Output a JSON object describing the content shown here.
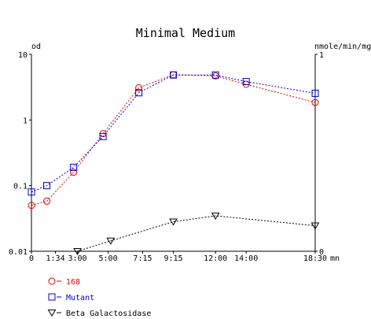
{
  "chart_data": {
    "type": "line",
    "title": "Minimal Medium",
    "y_left": {
      "label": "od",
      "scale": "log",
      "ylim": [
        0.01,
        10
      ],
      "ticks": [
        "10",
        "1",
        "0.1",
        "0.01"
      ]
    },
    "y_right": {
      "label": "nmole/min/mg",
      "ylim": [
        0,
        1
      ],
      "ticks": [
        "1",
        "0"
      ]
    },
    "x": {
      "unit": "mn",
      "tick_labels": [
        "0",
        "1:34",
        "3:00",
        "5:00",
        "7:15",
        "9:15",
        "12:00",
        "14:00",
        "18:30"
      ],
      "tick_minutes": [
        0,
        94,
        180,
        300,
        435,
        555,
        720,
        840,
        1110
      ]
    },
    "series": [
      {
        "name": "168",
        "axis": "left",
        "color": "#e00000",
        "marker": "circle",
        "x": [
          0,
          60,
          165,
          280,
          420,
          555,
          720,
          840,
          1110
        ],
        "y": [
          0.05,
          0.058,
          0.16,
          0.62,
          3.1,
          4.9,
          4.7,
          3.5,
          1.85
        ]
      },
      {
        "name": "Mutant",
        "axis": "left",
        "color": "#0000cc",
        "marker": "square",
        "x": [
          0,
          60,
          165,
          280,
          420,
          555,
          720,
          840,
          1110
        ],
        "y": [
          0.08,
          0.1,
          0.19,
          0.56,
          2.6,
          4.85,
          4.85,
          3.85,
          2.55
        ]
      },
      {
        "name": "Beta Galactosidase",
        "axis": "right",
        "color": "#000000",
        "marker": "triangle-down",
        "x": [
          180,
          310,
          555,
          720,
          1110
        ],
        "y": [
          0.0,
          0.053,
          0.15,
          0.18,
          0.13
        ]
      }
    ],
    "grid": false,
    "legend_position": "bottom-left"
  }
}
